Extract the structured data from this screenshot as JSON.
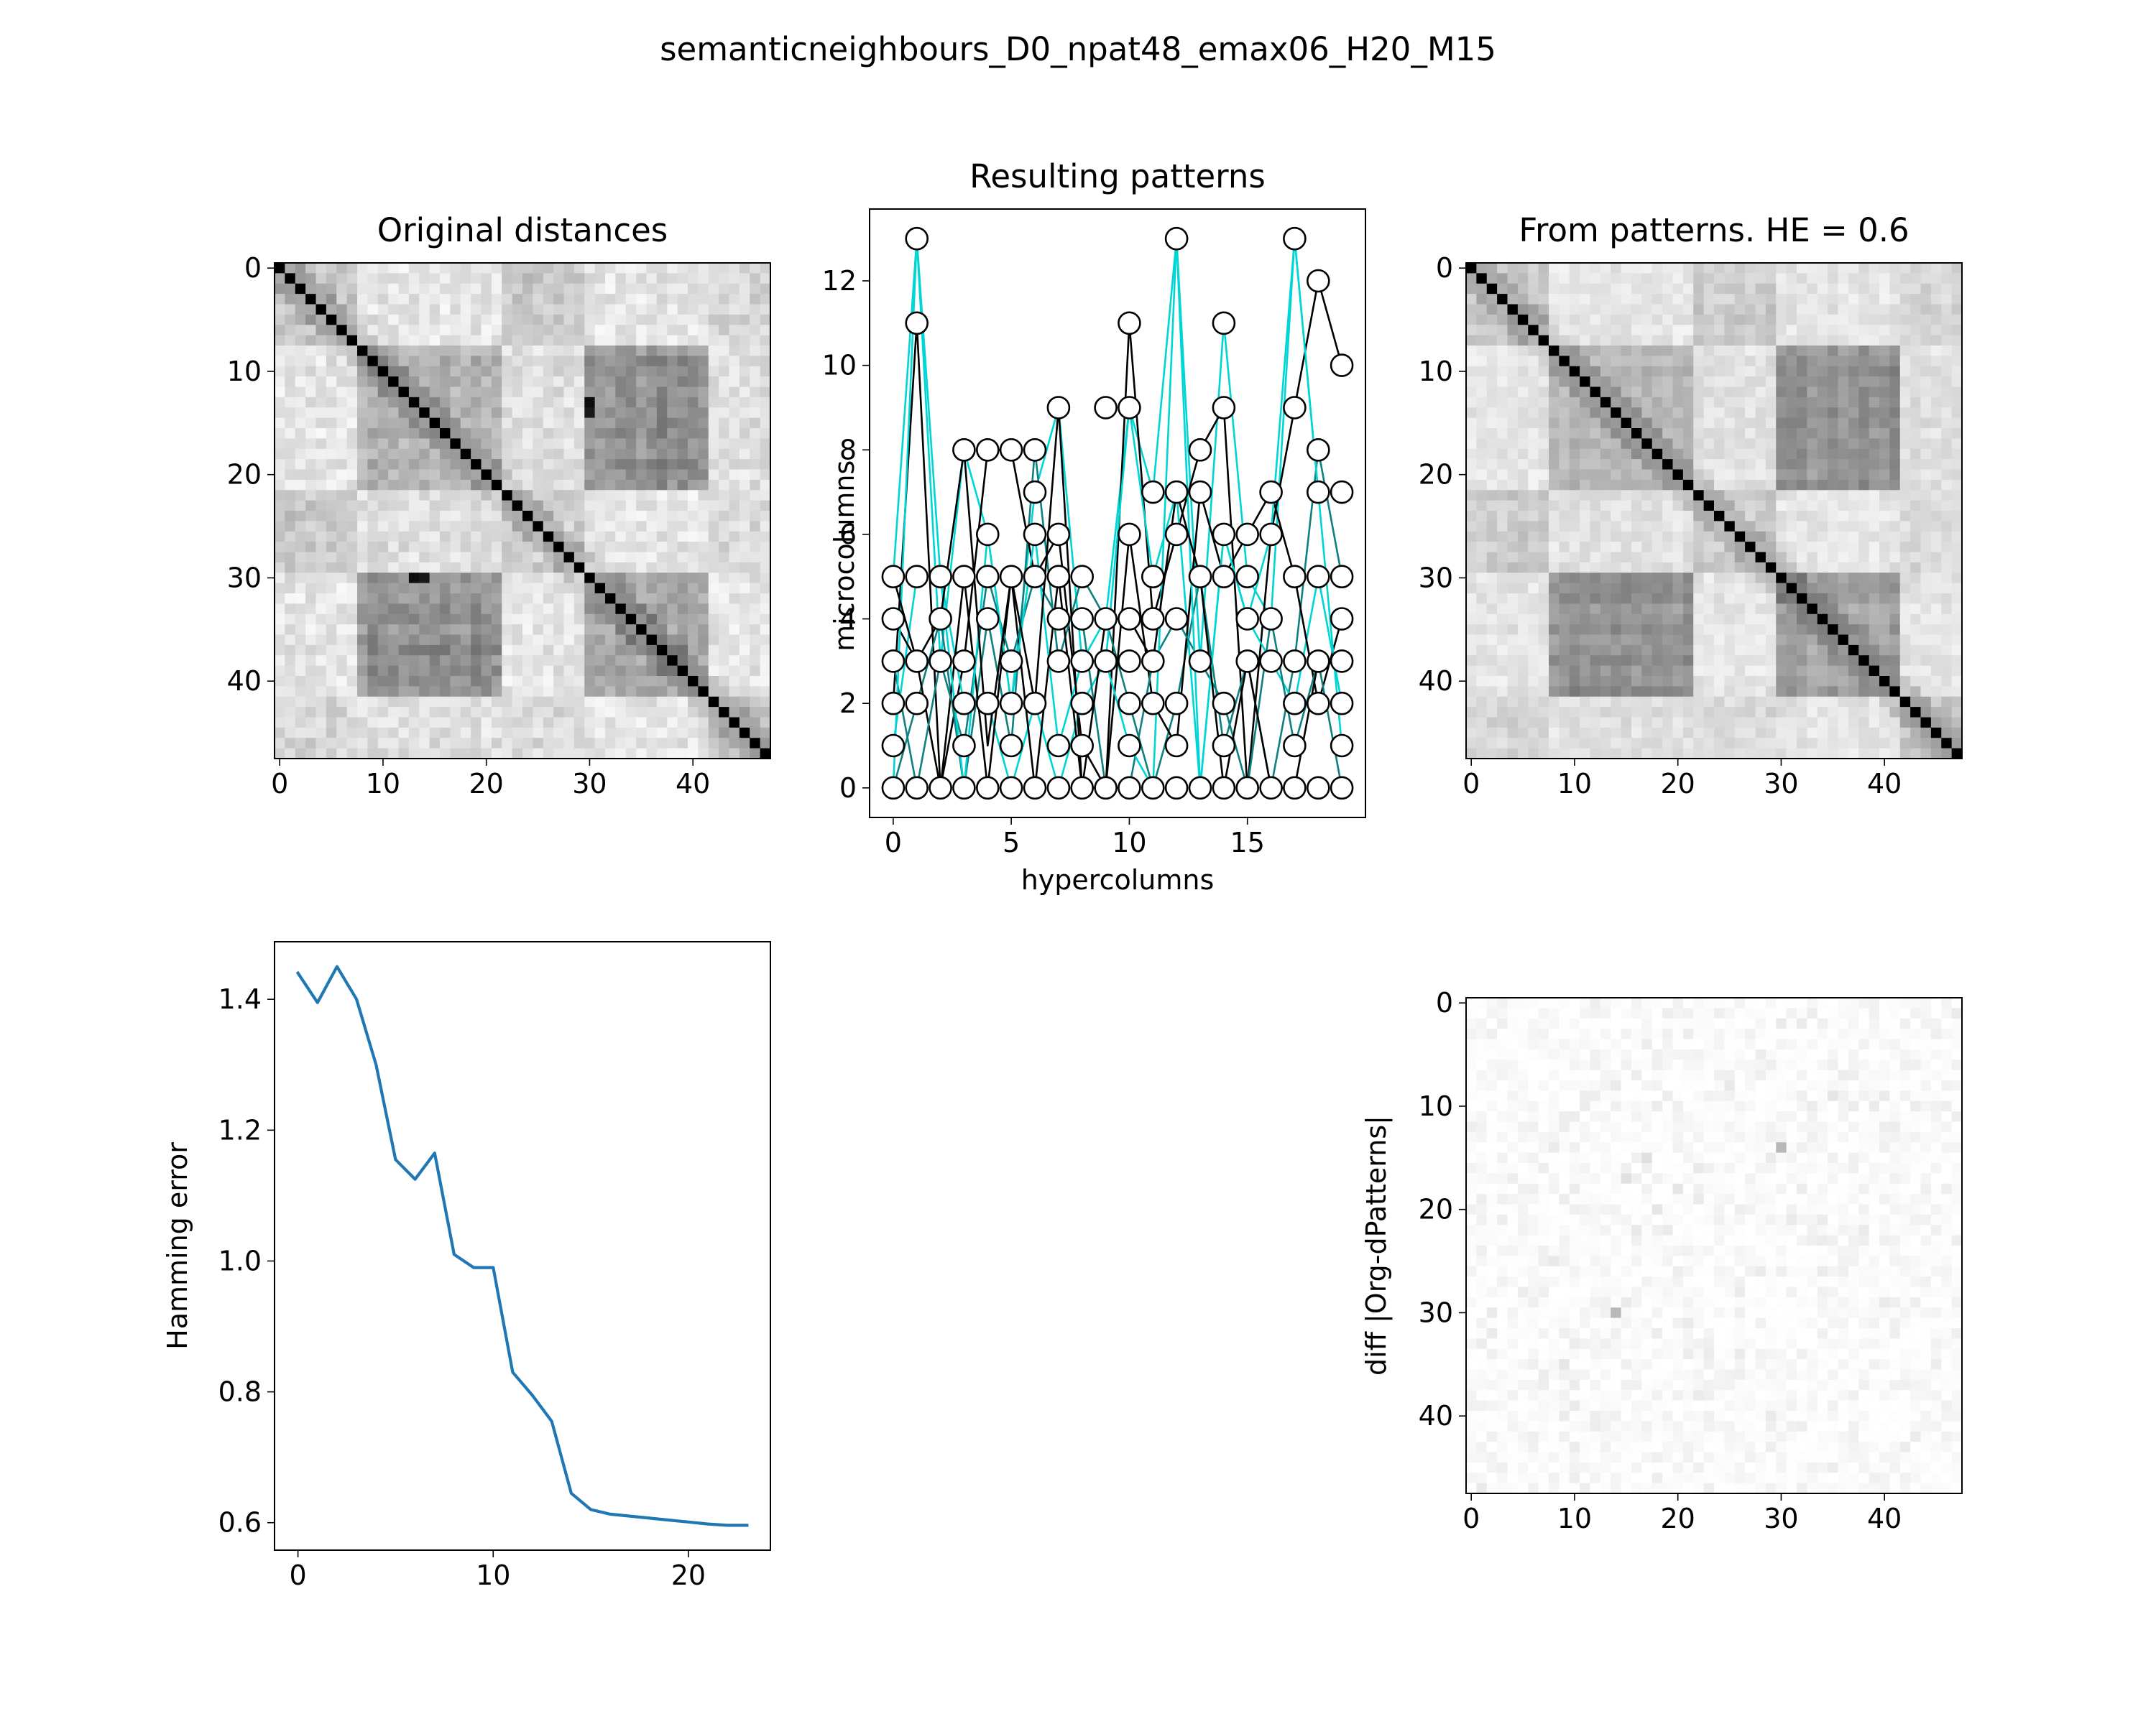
{
  "figure": {
    "suptitle": "semanticneighbours_D0_npat48_emax06_H20_M15"
  },
  "chart_data": [
    {
      "id": "original",
      "type": "heatmap",
      "title": "Original distances",
      "xlabel": "",
      "ylabel": "",
      "size": 48,
      "xticks": [
        0,
        10,
        20,
        30,
        40
      ],
      "yticks": [
        0,
        10,
        20,
        30,
        40
      ],
      "colormap": "gray_r",
      "diagonal": "black",
      "note_blocks": [
        [
          8,
          22,
          30,
          42,
          0.45
        ],
        [
          30,
          42,
          3,
          18,
          0.45
        ],
        [
          30,
          42,
          30,
          40,
          0.5
        ],
        [
          0,
          48,
          0,
          48,
          0.15
        ]
      ]
    },
    {
      "id": "patterns",
      "type": "line",
      "title": "Resulting patterns",
      "xlabel": "hypercolumns",
      "ylabel": "microcolumns",
      "xlim": [
        -1,
        20
      ],
      "ylim": [
        -0.7,
        13.7
      ],
      "xticks": [
        0,
        5,
        10,
        15
      ],
      "yticks": [
        0,
        2,
        4,
        6,
        8,
        10,
        12
      ],
      "line_colors": [
        "#00d5d5",
        "#000000",
        "#0f8080"
      ],
      "marker_face": "#ffffff",
      "marker_edge": "#000000",
      "points_per_hypercolumn": [
        [
          0,
          1,
          2,
          3,
          4,
          5
        ],
        [
          0,
          2,
          3,
          5,
          11,
          13
        ],
        [
          0,
          3,
          4,
          5
        ],
        [
          0,
          1,
          2,
          3,
          5,
          8
        ],
        [
          0,
          2,
          4,
          5,
          6,
          8
        ],
        [
          0,
          1,
          2,
          3,
          5,
          8
        ],
        [
          0,
          2,
          5,
          6,
          7,
          8
        ],
        [
          0,
          1,
          3,
          4,
          5,
          6,
          9
        ],
        [
          0,
          1,
          2,
          3,
          4,
          5
        ],
        [
          0,
          3,
          4,
          9
        ],
        [
          0,
          1,
          2,
          3,
          4,
          6,
          9,
          11
        ],
        [
          0,
          2,
          3,
          4,
          5,
          7
        ],
        [
          0,
          1,
          2,
          4,
          6,
          7,
          13
        ],
        [
          0,
          3,
          5,
          7,
          8
        ],
        [
          0,
          1,
          2,
          5,
          6,
          9,
          11
        ],
        [
          0,
          3,
          4,
          5,
          6
        ],
        [
          0,
          3,
          4,
          6,
          7
        ],
        [
          0,
          1,
          2,
          3,
          5,
          9,
          13
        ],
        [
          0,
          2,
          3,
          5,
          7,
          8,
          12
        ],
        [
          0,
          1,
          2,
          3,
          4,
          5,
          7,
          10
        ]
      ],
      "patterns": [
        [
          5,
          13,
          3,
          8,
          6,
          2,
          7,
          9,
          3,
          4,
          9,
          7,
          13,
          3,
          11,
          5,
          4,
          13,
          7,
          7
        ],
        [
          2,
          11,
          0,
          3,
          8,
          8,
          5,
          6,
          1,
          0,
          11,
          4,
          6,
          8,
          9,
          0,
          6,
          9,
          12,
          10
        ],
        [
          0,
          2,
          4,
          0,
          4,
          1,
          8,
          3,
          5,
          4,
          2,
          0,
          2,
          5,
          1,
          3,
          0,
          3,
          8,
          5
        ],
        [
          1,
          5,
          5,
          2,
          2,
          0,
          2,
          0,
          2,
          3,
          9,
          5,
          7,
          0,
          6,
          4,
          3,
          2,
          5,
          2
        ],
        [
          4,
          3,
          0,
          5,
          0,
          5,
          0,
          5,
          0,
          0,
          6,
          2,
          1,
          7,
          5,
          6,
          7,
          5,
          2,
          4
        ],
        [
          3,
          0,
          3,
          1,
          5,
          3,
          5,
          4,
          4,
          0,
          0,
          3,
          4,
          3,
          2,
          0,
          4,
          1,
          3,
          0
        ],
        [
          0,
          13,
          5,
          0,
          6,
          2,
          6,
          1,
          3,
          3,
          1,
          0,
          13,
          0,
          6,
          4,
          6,
          13,
          7,
          1
        ],
        [
          5,
          3,
          4,
          8,
          1,
          5,
          2,
          9,
          0,
          4,
          4,
          3,
          7,
          5,
          0,
          3,
          0,
          0,
          3,
          3
        ]
      ]
    },
    {
      "id": "from_patterns",
      "type": "heatmap",
      "title": "From patterns. HE = 0.6",
      "xlabel": "",
      "ylabel": "",
      "size": 48,
      "xticks": [
        0,
        10,
        20,
        30,
        40
      ],
      "yticks": [
        0,
        10,
        20,
        30,
        40
      ],
      "colormap": "gray_r",
      "diagonal": "black"
    },
    {
      "id": "hamming",
      "type": "line",
      "title": "",
      "xlabel": "",
      "ylabel": "Hamming error",
      "xlim": [
        -1.2,
        24.2
      ],
      "ylim": [
        0.558,
        1.488
      ],
      "xticks": [
        0,
        10,
        20
      ],
      "yticks": [
        0.6,
        0.8,
        1.0,
        1.2,
        1.4
      ],
      "ytick_labels": [
        "0.6",
        "0.8",
        "1.0",
        "1.2",
        "1.4"
      ],
      "color": "#1f77b4",
      "x": [
        0,
        1,
        2,
        3,
        4,
        5,
        6,
        7,
        8,
        9,
        10,
        11,
        12,
        13,
        14,
        15,
        16,
        17,
        18,
        19,
        20,
        21,
        22,
        23
      ],
      "y": [
        1.44,
        1.395,
        1.45,
        1.4,
        1.3,
        1.155,
        1.125,
        1.165,
        1.01,
        0.99,
        0.99,
        0.83,
        0.795,
        0.755,
        0.645,
        0.62,
        0.613,
        0.61,
        0.607,
        0.604,
        0.601,
        0.598,
        0.596,
        0.596
      ]
    },
    {
      "id": "diff",
      "type": "heatmap",
      "title": "",
      "xlabel": "",
      "ylabel": "diff |Org-dPatterns|",
      "size": 48,
      "xticks": [
        0,
        10,
        20,
        30,
        40
      ],
      "yticks": [
        0,
        10,
        20,
        30,
        40
      ],
      "colormap": "gray_r",
      "highlights": [
        [
          14,
          30,
          0.28
        ],
        [
          30,
          14,
          0.28
        ],
        [
          17,
          15,
          0.12
        ],
        [
          20,
          18,
          0.1
        ],
        [
          9,
          35,
          0.1
        ]
      ]
    }
  ]
}
